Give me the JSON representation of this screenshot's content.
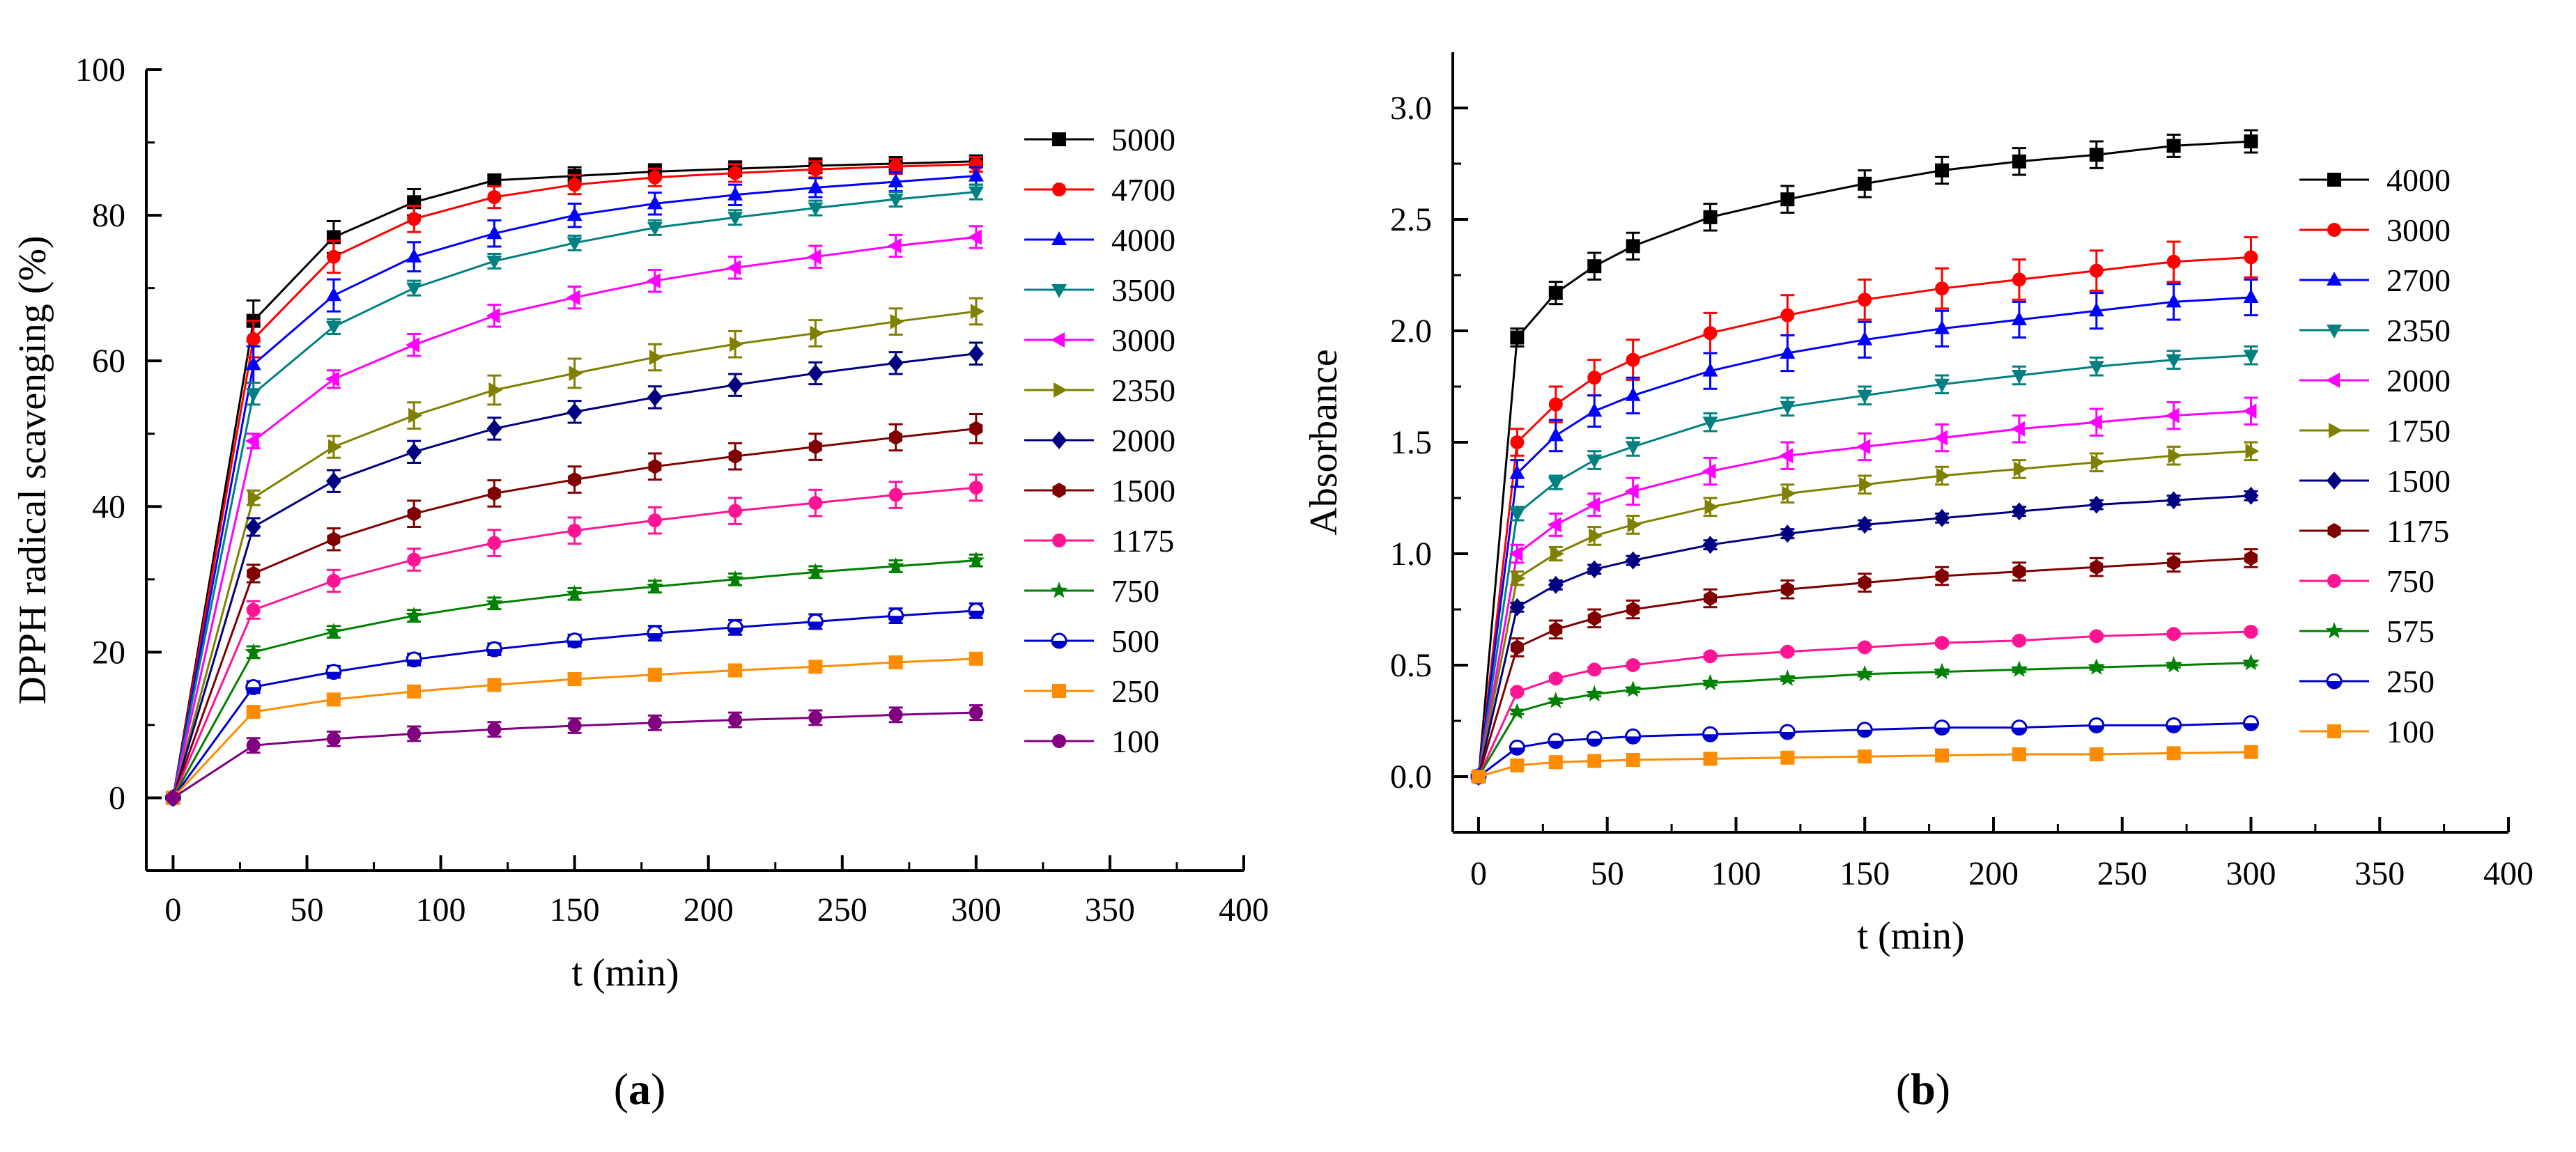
{
  "chart_data": [
    {
      "type": "line",
      "panel_label": "(a)",
      "panel_letter": "a",
      "title": "",
      "xlabel": "t (min)",
      "ylabel": "DPPH radical scavenging (%)",
      "xlim": [
        -10,
        400
      ],
      "ylim": [
        -10,
        100
      ],
      "xticks": [
        0,
        50,
        100,
        150,
        200,
        250,
        300,
        350,
        400
      ],
      "yticks": [
        0,
        20,
        40,
        60,
        80,
        100
      ],
      "ydecimals": 0,
      "legend_position": "right",
      "x": [
        0,
        30,
        60,
        90,
        120,
        150,
        180,
        210,
        240,
        270,
        300
      ],
      "series": [
        {
          "name": "5000",
          "color": "#000000",
          "marker": "square",
          "values": [
            0,
            65.5,
            77,
            81.8,
            84.8,
            85.4,
            86,
            86.4,
            86.8,
            87.1,
            87.4
          ],
          "errors": [
            0,
            2.8,
            2.2,
            1.8,
            0.8,
            1.2,
            1,
            1,
            1,
            0.9,
            0.8
          ]
        },
        {
          "name": "4700",
          "color": "#ff0000",
          "marker": "circle",
          "values": [
            0,
            63,
            74.3,
            79.5,
            82.5,
            84.2,
            85.2,
            85.8,
            86.3,
            86.7,
            87
          ],
          "errors": [
            0,
            2.5,
            2.2,
            1.8,
            1.5,
            1.3,
            1.2,
            1.2,
            1.1,
            1,
            1
          ]
        },
        {
          "name": "4000",
          "color": "#0000ff",
          "marker": "triangle-up",
          "values": [
            0,
            59.5,
            69,
            74.3,
            77.5,
            80,
            81.6,
            82.8,
            83.8,
            84.6,
            85.4
          ],
          "errors": [
            0,
            2.5,
            2.2,
            2,
            1.8,
            1.6,
            1.5,
            1.4,
            1.3,
            1.3,
            1.2
          ]
        },
        {
          "name": "3500",
          "color": "#008080",
          "marker": "triangle-down",
          "values": [
            0,
            55.5,
            64.7,
            70,
            73.7,
            76.2,
            78.3,
            79.7,
            81,
            82.2,
            83.2
          ],
          "errors": [
            0,
            1.5,
            1,
            1,
            1,
            1,
            1,
            1,
            1,
            1,
            1
          ]
        },
        {
          "name": "3000",
          "color": "#ff00ff",
          "marker": "triangle-left",
          "values": [
            0,
            49,
            57.5,
            62.2,
            66.2,
            68.7,
            71,
            72.8,
            74.3,
            75.8,
            77
          ],
          "errors": [
            0,
            1,
            1.2,
            1.5,
            1.5,
            1.5,
            1.5,
            1.5,
            1.5,
            1.5,
            1.5
          ]
        },
        {
          "name": "2350",
          "color": "#808000",
          "marker": "triangle-right",
          "values": [
            0,
            41.2,
            48.2,
            52.5,
            56,
            58.3,
            60.5,
            62.3,
            63.8,
            65.4,
            66.8
          ],
          "errors": [
            0,
            1,
            1.5,
            1.8,
            2,
            2,
            1.8,
            1.8,
            1.8,
            1.8,
            1.8
          ]
        },
        {
          "name": "2000",
          "color": "#000080",
          "marker": "diamond",
          "values": [
            0,
            37.2,
            43.5,
            47.5,
            50.7,
            53,
            55,
            56.7,
            58.3,
            59.7,
            61
          ],
          "errors": [
            0,
            1.2,
            1.5,
            1.5,
            1.5,
            1.5,
            1.5,
            1.5,
            1.5,
            1.5,
            1.5
          ]
        },
        {
          "name": "1500",
          "color": "#800000",
          "marker": "hexagon",
          "values": [
            0,
            30.8,
            35.5,
            39,
            41.8,
            43.7,
            45.5,
            46.9,
            48.2,
            49.5,
            50.7
          ],
          "errors": [
            0,
            1.2,
            1.5,
            1.8,
            1.8,
            1.8,
            1.8,
            1.8,
            1.8,
            1.8,
            2
          ]
        },
        {
          "name": "1175",
          "color": "#ff1493",
          "marker": "circle",
          "values": [
            0,
            25.8,
            29.8,
            32.7,
            35,
            36.7,
            38.1,
            39.4,
            40.5,
            41.6,
            42.6
          ],
          "errors": [
            0,
            1.2,
            1.5,
            1.5,
            1.8,
            1.8,
            1.8,
            1.8,
            1.8,
            1.8,
            1.8
          ]
        },
        {
          "name": "750",
          "color": "#008000",
          "marker": "star",
          "values": [
            0,
            20,
            22.8,
            25,
            26.7,
            28,
            29,
            30,
            31,
            31.8,
            32.6
          ],
          "errors": [
            0,
            0.8,
            0.8,
            0.8,
            0.8,
            0.8,
            0.8,
            0.8,
            0.8,
            0.8,
            0.8
          ]
        },
        {
          "name": "500",
          "color": "#0000cd",
          "marker": "half-circle",
          "values": [
            0,
            15.2,
            17.3,
            19,
            20.4,
            21.6,
            22.6,
            23.4,
            24.2,
            25,
            25.7
          ],
          "errors": [
            0,
            0.8,
            0.8,
            0.8,
            0.8,
            0.8,
            1,
            1,
            1,
            1,
            1
          ]
        },
        {
          "name": "250",
          "color": "#ff8c00",
          "marker": "square",
          "values": [
            0,
            11.8,
            13.5,
            14.6,
            15.5,
            16.3,
            16.9,
            17.5,
            18,
            18.6,
            19.1
          ],
          "errors": [
            0,
            0.6,
            0.8,
            0.8,
            0.8,
            0.8,
            0.8,
            0.8,
            0.8,
            0.8,
            0.8
          ]
        },
        {
          "name": "100",
          "color": "#800080",
          "marker": "circle",
          "values": [
            0,
            7.2,
            8.1,
            8.8,
            9.4,
            9.9,
            10.3,
            10.7,
            11,
            11.4,
            11.7
          ],
          "errors": [
            0,
            1,
            1,
            1,
            1,
            1,
            1,
            1,
            1,
            1,
            1
          ]
        }
      ]
    },
    {
      "type": "line",
      "panel_label": "(b)",
      "panel_letter": "b",
      "title": "",
      "xlabel": "t (min)",
      "ylabel": "Absorbance",
      "xlim": [
        -10,
        400
      ],
      "ylim": [
        -0.25,
        3.25
      ],
      "xticks": [
        0,
        50,
        100,
        150,
        200,
        250,
        300,
        350,
        400
      ],
      "yticks": [
        0.0,
        0.5,
        1.0,
        1.5,
        2.0,
        2.5,
        3.0
      ],
      "ydecimals": 1,
      "legend_position": "right",
      "x": [
        0,
        15,
        30,
        45,
        60,
        90,
        120,
        150,
        180,
        210,
        240,
        270,
        300
      ],
      "series": [
        {
          "name": "4000",
          "color": "#000000",
          "marker": "square",
          "values": [
            0,
            1.97,
            2.17,
            2.29,
            2.38,
            2.51,
            2.59,
            2.66,
            2.72,
            2.76,
            2.79,
            2.83,
            2.85
          ],
          "errors": [
            0,
            0.04,
            0.05,
            0.06,
            0.06,
            0.06,
            0.06,
            0.06,
            0.06,
            0.06,
            0.06,
            0.05,
            0.05
          ]
        },
        {
          "name": "3000",
          "color": "#ff0000",
          "marker": "circle",
          "values": [
            0,
            1.5,
            1.67,
            1.79,
            1.87,
            1.99,
            2.07,
            2.14,
            2.19,
            2.23,
            2.27,
            2.31,
            2.33
          ],
          "errors": [
            0,
            0.06,
            0.08,
            0.08,
            0.09,
            0.09,
            0.09,
            0.09,
            0.09,
            0.09,
            0.09,
            0.09,
            0.09
          ]
        },
        {
          "name": "2700",
          "color": "#0000ff",
          "marker": "triangle-up",
          "values": [
            0,
            1.36,
            1.53,
            1.64,
            1.71,
            1.82,
            1.9,
            1.96,
            2.01,
            2.05,
            2.09,
            2.13,
            2.15
          ],
          "errors": [
            0,
            0.06,
            0.07,
            0.07,
            0.08,
            0.08,
            0.08,
            0.08,
            0.08,
            0.08,
            0.08,
            0.08,
            0.08
          ]
        },
        {
          "name": "2350",
          "color": "#008080",
          "marker": "triangle-down",
          "values": [
            0,
            1.18,
            1.32,
            1.42,
            1.48,
            1.59,
            1.66,
            1.71,
            1.76,
            1.8,
            1.84,
            1.87,
            1.89
          ],
          "errors": [
            0,
            0.03,
            0.03,
            0.04,
            0.04,
            0.04,
            0.04,
            0.04,
            0.04,
            0.04,
            0.04,
            0.04,
            0.04
          ]
        },
        {
          "name": "2000",
          "color": "#ff00ff",
          "marker": "triangle-left",
          "values": [
            0,
            1.0,
            1.13,
            1.22,
            1.28,
            1.37,
            1.44,
            1.48,
            1.52,
            1.56,
            1.59,
            1.62,
            1.64
          ],
          "errors": [
            0,
            0.04,
            0.05,
            0.05,
            0.06,
            0.06,
            0.06,
            0.06,
            0.06,
            0.06,
            0.06,
            0.06,
            0.06
          ]
        },
        {
          "name": "1750",
          "color": "#808000",
          "marker": "triangle-right",
          "values": [
            0,
            0.89,
            1.0,
            1.08,
            1.13,
            1.21,
            1.27,
            1.31,
            1.35,
            1.38,
            1.41,
            1.44,
            1.46
          ],
          "errors": [
            0,
            0.03,
            0.03,
            0.04,
            0.04,
            0.04,
            0.04,
            0.04,
            0.04,
            0.04,
            0.04,
            0.04,
            0.04
          ]
        },
        {
          "name": "1500",
          "color": "#000080",
          "marker": "diamond",
          "values": [
            0,
            0.76,
            0.86,
            0.93,
            0.97,
            1.04,
            1.09,
            1.13,
            1.16,
            1.19,
            1.22,
            1.24,
            1.26
          ],
          "errors": [
            0,
            0.02,
            0.02,
            0.02,
            0.02,
            0.02,
            0.02,
            0.02,
            0.02,
            0.02,
            0.02,
            0.02,
            0.02
          ]
        },
        {
          "name": "1175",
          "color": "#800000",
          "marker": "hexagon",
          "values": [
            0,
            0.58,
            0.66,
            0.71,
            0.75,
            0.8,
            0.84,
            0.87,
            0.9,
            0.92,
            0.94,
            0.96,
            0.98
          ],
          "errors": [
            0,
            0.04,
            0.04,
            0.04,
            0.04,
            0.04,
            0.04,
            0.04,
            0.04,
            0.04,
            0.04,
            0.04,
            0.04
          ]
        },
        {
          "name": "750",
          "color": "#ff1493",
          "marker": "circle",
          "values": [
            0,
            0.38,
            0.44,
            0.48,
            0.5,
            0.54,
            0.56,
            0.58,
            0.6,
            0.61,
            0.63,
            0.64,
            0.65
          ],
          "errors": [
            0,
            0.01,
            0.01,
            0.01,
            0.01,
            0.01,
            0.01,
            0.01,
            0.01,
            0.01,
            0.01,
            0.01,
            0.01
          ]
        },
        {
          "name": "575",
          "color": "#008000",
          "marker": "star",
          "values": [
            0,
            0.29,
            0.34,
            0.37,
            0.39,
            0.42,
            0.44,
            0.46,
            0.47,
            0.48,
            0.49,
            0.5,
            0.51
          ],
          "errors": [
            0,
            0.01,
            0.01,
            0.01,
            0.01,
            0.01,
            0.01,
            0.01,
            0.01,
            0.01,
            0.01,
            0.01,
            0.01
          ]
        },
        {
          "name": "250",
          "color": "#0000cd",
          "marker": "half-circle",
          "values": [
            0,
            0.13,
            0.16,
            0.17,
            0.18,
            0.19,
            0.2,
            0.21,
            0.22,
            0.22,
            0.23,
            0.23,
            0.24
          ],
          "errors": [
            0,
            0.01,
            0.01,
            0.01,
            0.01,
            0.01,
            0.01,
            0.01,
            0.01,
            0.01,
            0.01,
            0.01,
            0.01
          ]
        },
        {
          "name": "100",
          "color": "#ff8c00",
          "marker": "square",
          "values": [
            0,
            0.05,
            0.065,
            0.07,
            0.075,
            0.08,
            0.085,
            0.09,
            0.095,
            0.1,
            0.1,
            0.105,
            0.11
          ],
          "errors": [
            0,
            0.005,
            0.005,
            0.005,
            0.005,
            0.005,
            0.005,
            0.005,
            0.005,
            0.005,
            0.005,
            0.005,
            0.005
          ]
        }
      ]
    }
  ]
}
